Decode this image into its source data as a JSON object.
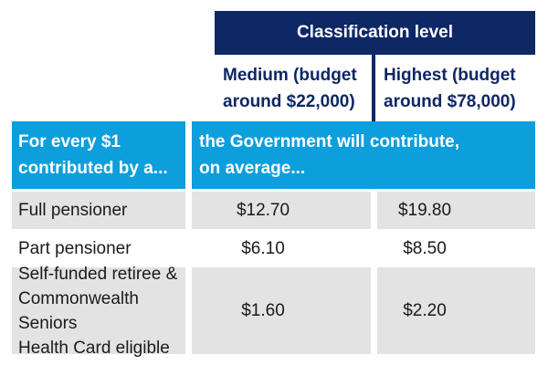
{
  "colors": {
    "navy": "#0e2765",
    "cyan": "#0d9edc",
    "row_gray": "#e3e3e3",
    "body_text": "#1a1a1a",
    "header_text": "#ffffff"
  },
  "table": {
    "classification_header": "Classification level",
    "columns": [
      {
        "lines": [
          "Medium (budget",
          "around $22,000)"
        ]
      },
      {
        "lines": [
          "Highest (budget",
          "around $78,000)"
        ]
      }
    ],
    "contribution_header": {
      "left": {
        "lines": [
          "For every $1",
          "contributed by a..."
        ]
      },
      "right": {
        "lines": [
          "the Government will contribute,",
          "on average..."
        ]
      }
    },
    "rows": [
      {
        "label_lines": [
          "Full pensioner"
        ],
        "medium": "$12.70",
        "highest": "$19.80"
      },
      {
        "label_lines": [
          "Part pensioner"
        ],
        "medium": "$6.10",
        "highest": "$8.50"
      },
      {
        "label_lines": [
          "Self-funded retiree &",
          "Commonwealth Seniors",
          "Health Card eligible"
        ],
        "medium": "$1.60",
        "highest": "$2.20"
      }
    ]
  }
}
